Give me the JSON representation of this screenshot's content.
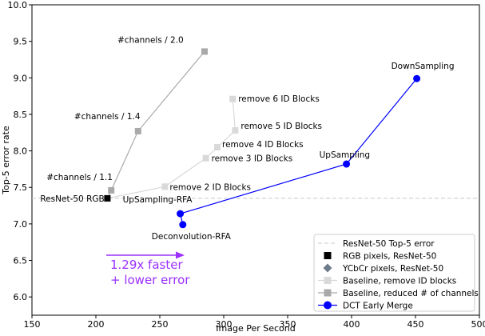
{
  "chart_data": {
    "type": "scatter",
    "xlabel": "Image Per Second",
    "ylabel": "Top-5 error rate",
    "xlim": [
      150,
      500
    ],
    "ylim": [
      5.75,
      10.0
    ],
    "xticks": [
      "150",
      "200",
      "250",
      "300",
      "350",
      "400",
      "450",
      "500"
    ],
    "yticks": [
      "6.0",
      "6.5",
      "7.0",
      "7.5",
      "8.0",
      "8.5",
      "9.0",
      "9.5",
      "10.0"
    ],
    "grid": false,
    "legend_position": "bottom-right",
    "reference_line": {
      "name": "ResNet-50 Top-5 error",
      "y": 7.35,
      "color": "#c8c8c8"
    },
    "series": [
      {
        "name": "RGB pixels, ResNet-50",
        "marker": "square",
        "color": "#000000",
        "line": false,
        "points": [
          {
            "x": 209,
            "y": 7.35
          }
        ]
      },
      {
        "name": "YCbCr pixels, ResNet-50",
        "marker": "diamond",
        "color": "#6e7b8b",
        "line": false,
        "points": []
      },
      {
        "name": "Baseline, remove ID blocks",
        "marker": "square",
        "color": "#d9d9d9",
        "line": true,
        "points": [
          {
            "x": 209,
            "y": 7.35
          },
          {
            "x": 254,
            "y": 7.51
          },
          {
            "x": 286,
            "y": 7.9
          },
          {
            "x": 295,
            "y": 8.05
          },
          {
            "x": 309,
            "y": 8.28
          },
          {
            "x": 307,
            "y": 8.71
          }
        ]
      },
      {
        "name": "Baseline, reduced # of channels",
        "marker": "square",
        "color": "#a9a9a9",
        "line": true,
        "points": [
          {
            "x": 209,
            "y": 7.35
          },
          {
            "x": 212,
            "y": 7.46
          },
          {
            "x": 233,
            "y": 8.27
          },
          {
            "x": 285,
            "y": 9.36
          }
        ]
      },
      {
        "name": "DCT Early Merge",
        "marker": "circle",
        "color": "#0000ff",
        "line": true,
        "points": [
          {
            "x": 268,
            "y": 6.99
          },
          {
            "x": 266,
            "y": 7.14
          },
          {
            "x": 396,
            "y": 7.82
          },
          {
            "x": 451,
            "y": 8.99
          }
        ]
      }
    ],
    "annotations": [
      {
        "text": "#channels / 2.0",
        "x": 285,
        "y": 9.36
      },
      {
        "text": "#channels / 1.4",
        "x": 233,
        "y": 8.27
      },
      {
        "text": "#channels / 1.1",
        "x": 212,
        "y": 7.46
      },
      {
        "text": "ResNet-50 RGB",
        "x": 209,
        "y": 7.35
      },
      {
        "text": "remove 6 ID Blocks",
        "x": 307,
        "y": 8.71
      },
      {
        "text": "remove 5 ID Blocks",
        "x": 309,
        "y": 8.28
      },
      {
        "text": "remove 4 ID Blocks",
        "x": 295,
        "y": 8.05
      },
      {
        "text": "remove 3 ID Blocks",
        "x": 286,
        "y": 7.9
      },
      {
        "text": "remove 2 ID Blocks",
        "x": 254,
        "y": 7.51
      },
      {
        "text": "DownSampling",
        "x": 451,
        "y": 8.99
      },
      {
        "text": "UpSampling",
        "x": 396,
        "y": 7.82
      },
      {
        "text": "UpSampling-RFA",
        "x": 266,
        "y": 7.14
      },
      {
        "text": "Deconvolution-RFA",
        "x": 268,
        "y": 6.99
      }
    ],
    "callout": {
      "lines": [
        "1.29x faster",
        "+ lower error"
      ],
      "color": "#9b30ff"
    }
  }
}
